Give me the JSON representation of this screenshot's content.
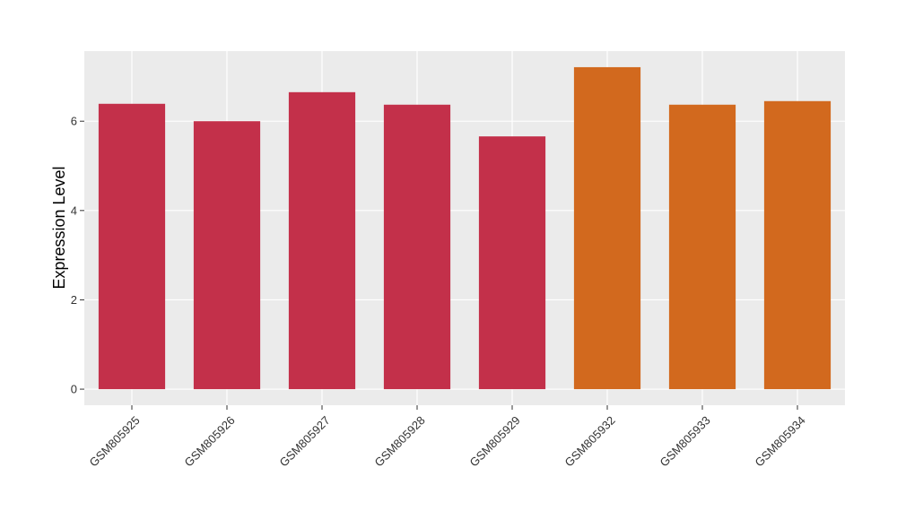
{
  "chart_data": {
    "type": "bar",
    "y_label": "Expression Level",
    "categories": [
      "GSM805925",
      "GSM805926",
      "GSM805927",
      "GSM805928",
      "GSM805929",
      "GSM805932",
      "GSM805933",
      "GSM805934"
    ],
    "values": [
      6.39,
      6.0,
      6.65,
      6.37,
      5.66,
      7.21,
      6.37,
      6.45
    ],
    "colors": [
      "#c3304a",
      "#c3304a",
      "#c3304a",
      "#c3304a",
      "#c3304a",
      "#d2691e",
      "#d2691e",
      "#d2691e"
    ],
    "ylim": [
      -0.36,
      7.57
    ],
    "yticks": [
      0,
      2,
      4,
      6
    ],
    "grid": true
  }
}
